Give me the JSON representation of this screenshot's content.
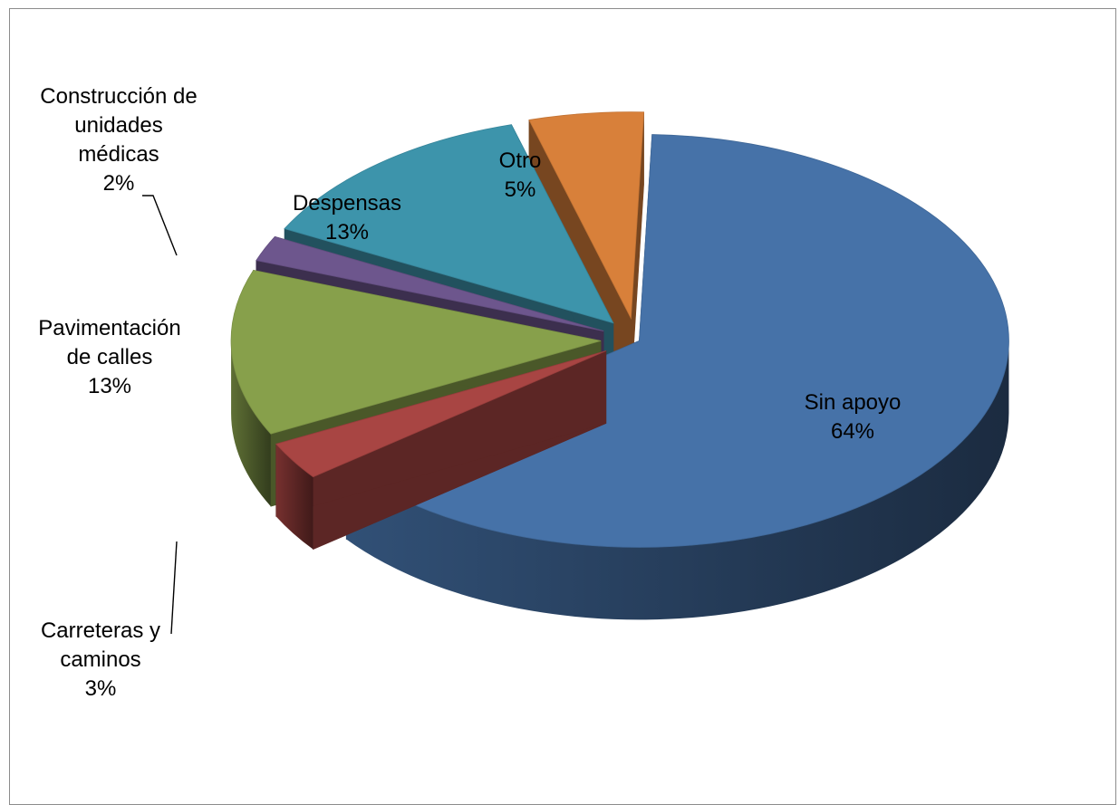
{
  "chart_data": {
    "type": "pie",
    "style": "3d-exploded",
    "legend": "none",
    "slices": [
      {
        "label_lines": [
          "Sin apoyo"
        ],
        "label": "Sin apoyo",
        "pct_label": "64%",
        "value": 64,
        "color": "#4672A8"
      },
      {
        "label_lines": [
          "Carreteras y",
          "caminos"
        ],
        "label": "Carreteras y caminos",
        "pct_label": "3%",
        "value": 3,
        "color": "#A84543"
      },
      {
        "label_lines": [
          "Pavimentación",
          "de calles"
        ],
        "label": "Pavimentación de calles",
        "pct_label": "13%",
        "value": 13,
        "color": "#87A04B"
      },
      {
        "label_lines": [
          "Construcción de",
          "unidades",
          "médicas"
        ],
        "label": "Construcción de unidades médicas",
        "pct_label": "2%",
        "value": 2,
        "color": "#6D568D"
      },
      {
        "label_lines": [
          "Despensas"
        ],
        "label": "Despensas",
        "pct_label": "13%",
        "value": 13,
        "color": "#3D94AB"
      },
      {
        "label_lines": [
          "Otro"
        ],
        "label": "Otro",
        "pct_label": "5%",
        "value": 5,
        "color": "#D8803A"
      }
    ]
  }
}
